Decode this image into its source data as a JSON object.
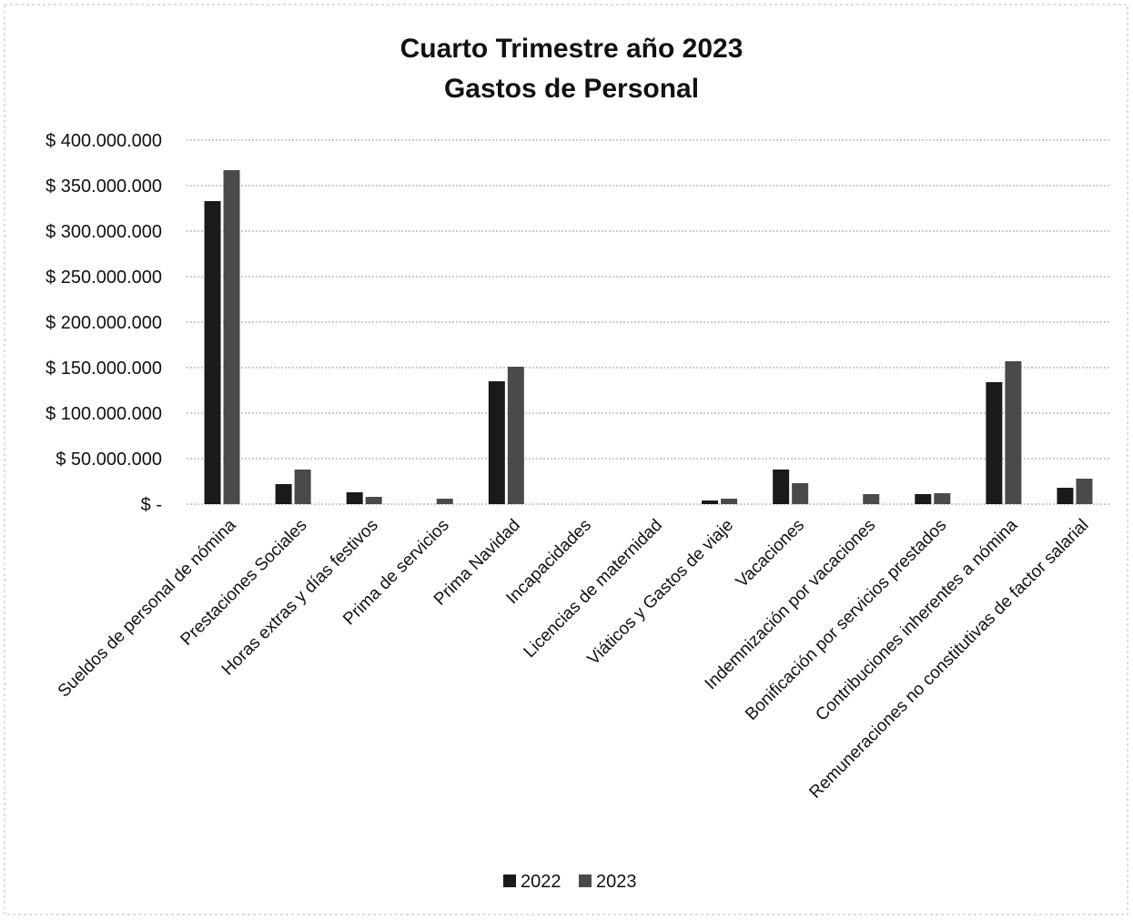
{
  "chart_data": {
    "type": "bar",
    "title_lines": [
      "Cuarto Trimestre año 2023",
      "Gastos de Personal"
    ],
    "xlabel": "",
    "ylabel": "",
    "ylim": [
      0,
      400000000
    ],
    "y_tick_values": [
      0,
      50000000,
      100000000,
      150000000,
      200000000,
      250000000,
      300000000,
      350000000,
      400000000
    ],
    "y_tick_labels": [
      "$ -",
      "$ 50.000.000",
      "$ 100.000.000",
      "$ 150.000.000",
      "$ 200.000.000",
      "$ 250.000.000",
      "$ 300.000.000",
      "$ 350.000.000",
      "$ 400.000.000"
    ],
    "grid": true,
    "legend_position": "bottom",
    "categories": [
      "Sueldos de personal de nómina",
      "Prestaciones Sociales",
      "Horas extras y días festivos",
      "Prima de servicios",
      "Prima Navidad",
      "Incapacidades",
      "Licencias de maternidad",
      "Viáticos y Gastos de viaje",
      "Vacaciones",
      "Indemnización por vacaciones",
      "Bonificación por servicios prestados",
      "Contribuciones inherentes a nómina",
      "Remuneraciones no constitutivas de factor salarial"
    ],
    "series": [
      {
        "name": "2022",
        "color": "#1a1a1a",
        "values": [
          333000000,
          22000000,
          13000000,
          0,
          135000000,
          0,
          0,
          4000000,
          38000000,
          0,
          11000000,
          134000000,
          18000000
        ]
      },
      {
        "name": "2023",
        "color": "#4a4a4a",
        "values": [
          367000000,
          38000000,
          8000000,
          6000000,
          151000000,
          0,
          0,
          6000000,
          23000000,
          11000000,
          12000000,
          157000000,
          28000000
        ]
      }
    ]
  }
}
